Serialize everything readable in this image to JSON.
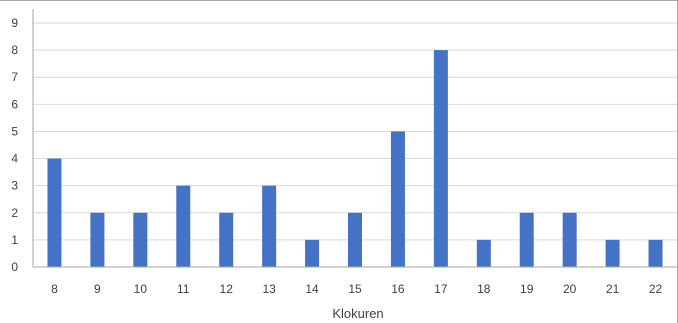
{
  "chart_data": {
    "type": "bar",
    "title": "",
    "xlabel": "Klokuren",
    "ylabel": "",
    "categories": [
      "8",
      "9",
      "10",
      "11",
      "12",
      "13",
      "14",
      "15",
      "16",
      "17",
      "18",
      "19",
      "20",
      "21",
      "22"
    ],
    "values": [
      4,
      2,
      2,
      3,
      2,
      3,
      1,
      2,
      5,
      8,
      1,
      2,
      2,
      1,
      1
    ],
    "ylim": [
      0,
      9
    ],
    "yticks": [
      "0",
      "1",
      "2",
      "3",
      "4",
      "5",
      "6",
      "7",
      "8",
      "9"
    ],
    "grid": true,
    "legend": "none",
    "colors": {
      "bar": "#4472c4",
      "grid": "#d9d9d9",
      "axis": "#a6a6a6",
      "text": "#404040"
    }
  }
}
